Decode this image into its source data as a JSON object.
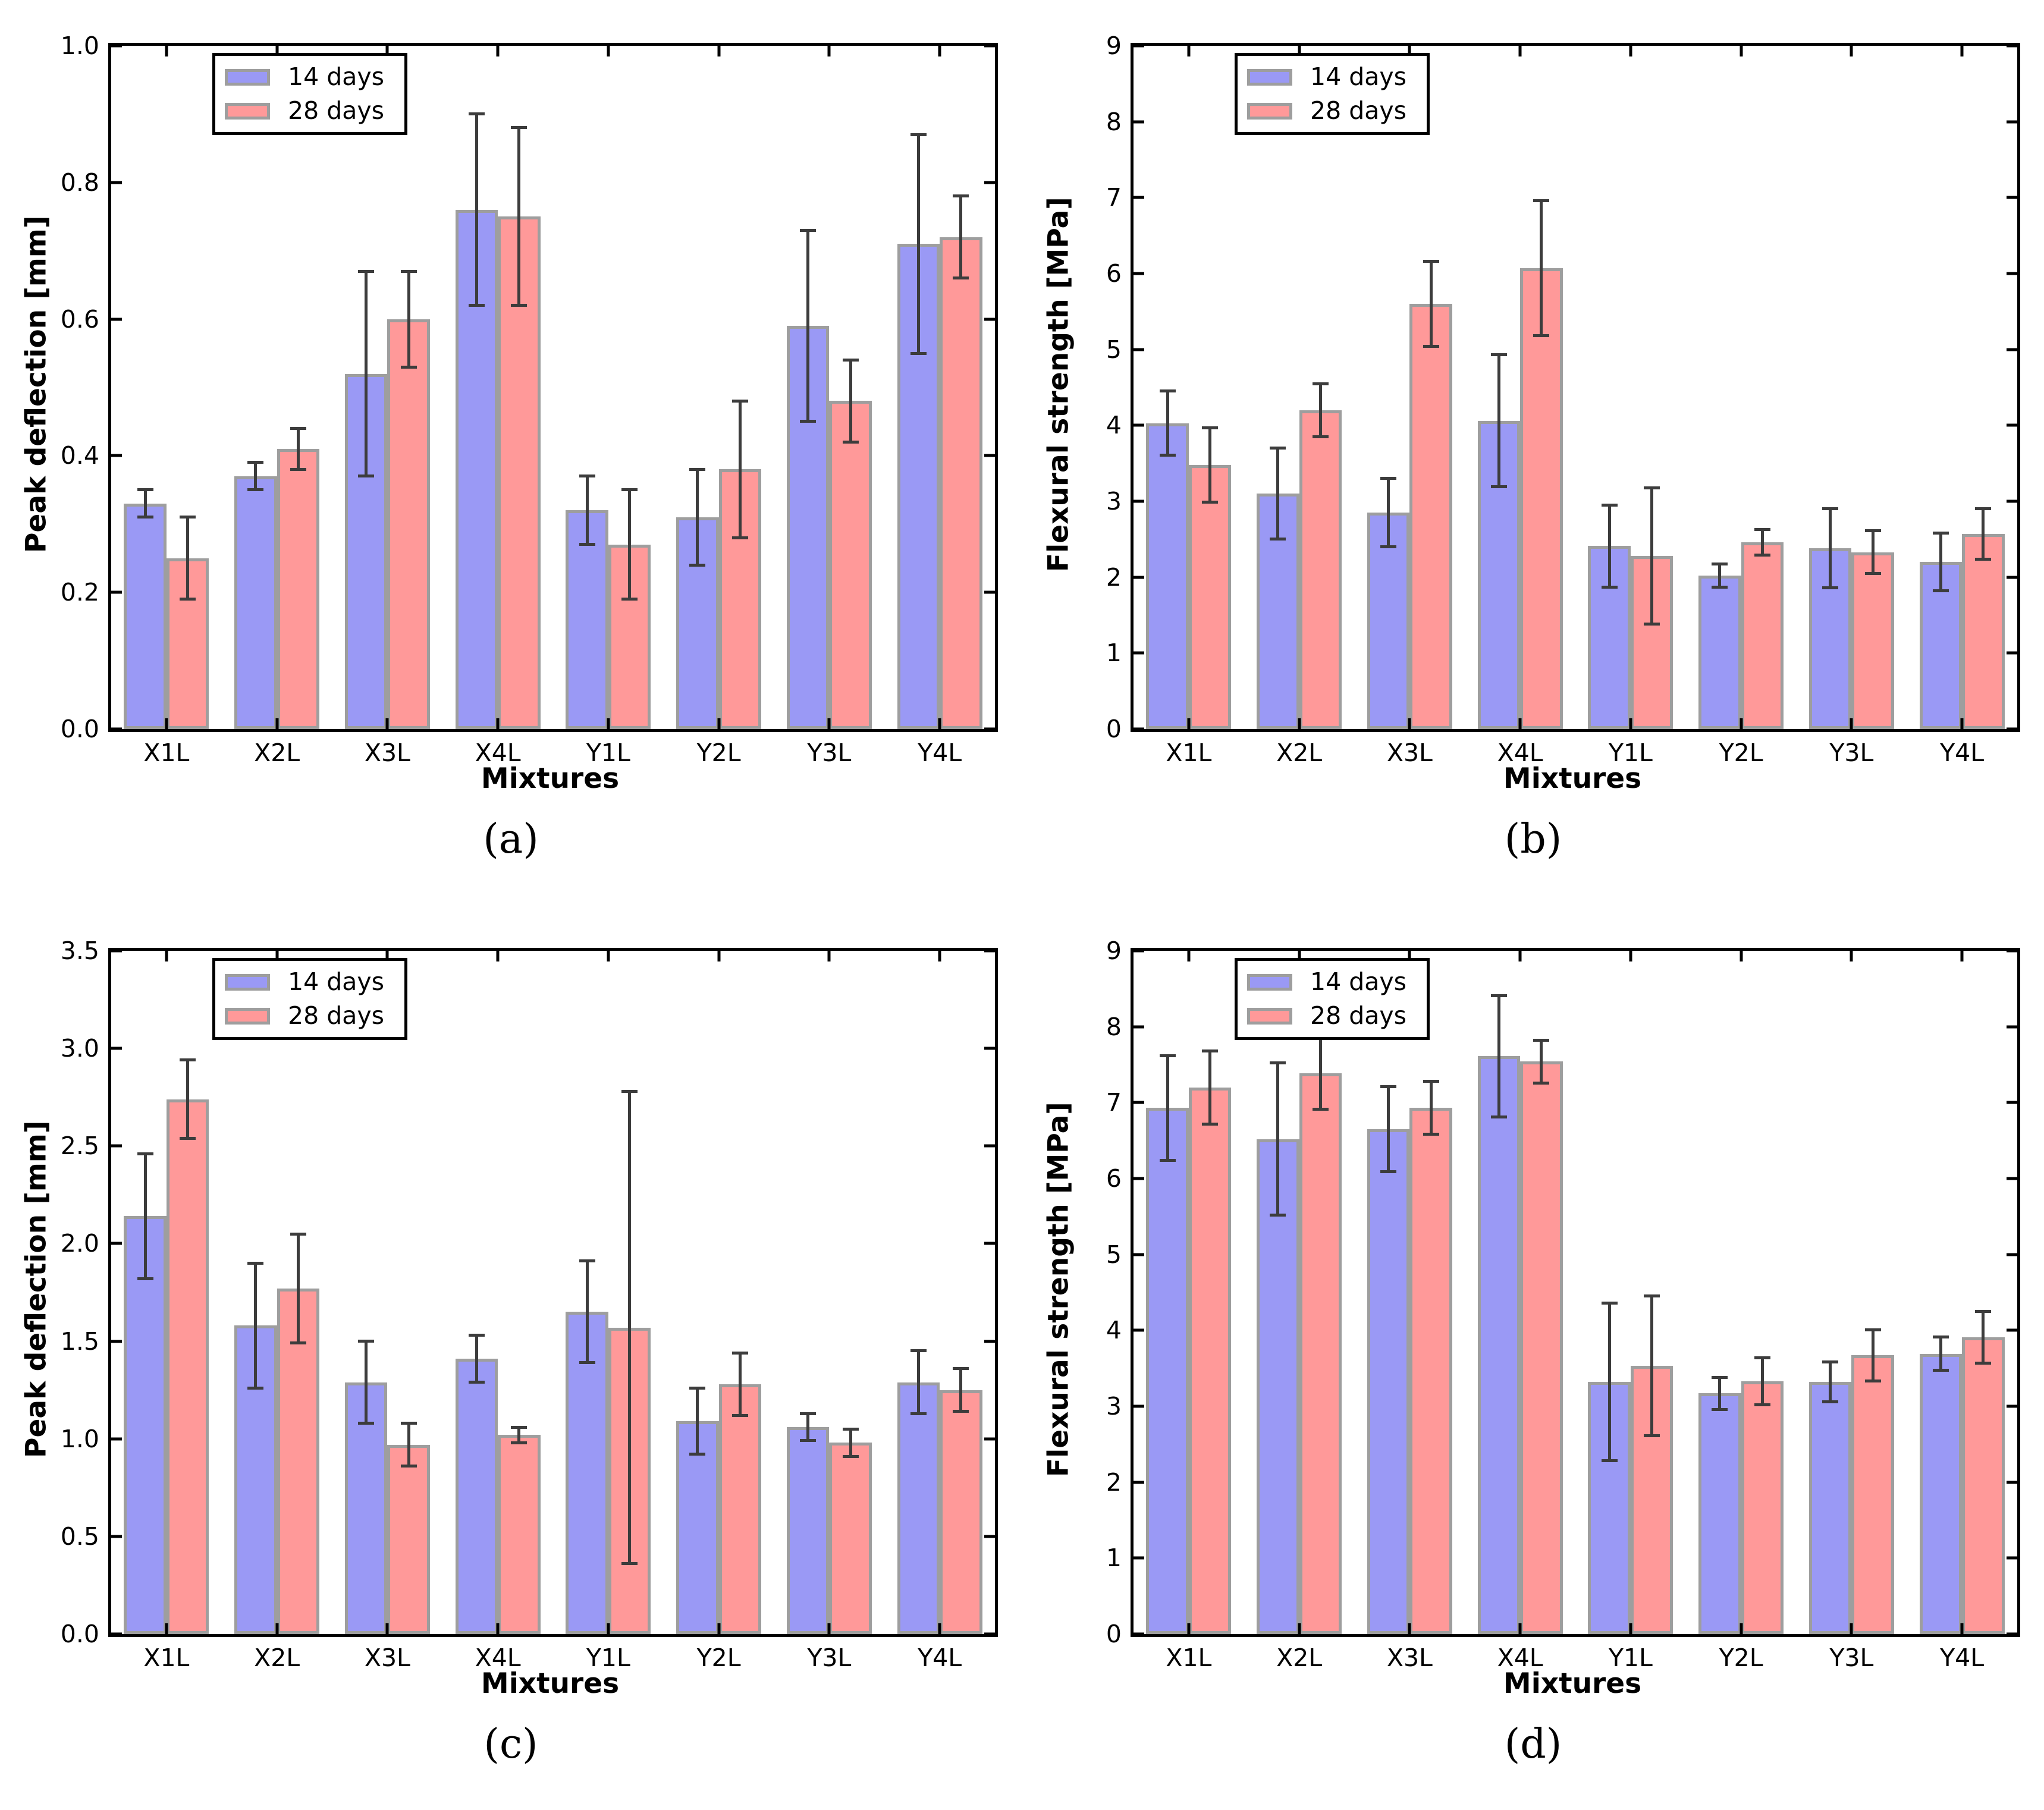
{
  "colors": {
    "series_14_days": "#9a99f5",
    "series_28_days": "#ff9999",
    "bar_edge": "#9e9e9e",
    "error_bar": "#3c3c3c",
    "axis": "#000000",
    "background": "#ffffff"
  },
  "chart_data": [
    {
      "id": "a",
      "type": "bar",
      "caption": "(a)",
      "xlabel": "Mixtures",
      "ylabel": "Peak deflection [mm]",
      "ylim": [
        0,
        1.0
      ],
      "yticks": [
        0,
        0.2,
        0.4,
        0.6,
        0.8,
        1.0
      ],
      "ytick_labels": [
        "0.0",
        "0.2",
        "0.4",
        "0.6",
        "0.8",
        "1.0"
      ],
      "categories": [
        "X1L",
        "X2L",
        "X3L",
        "X4L",
        "Y1L",
        "Y2L",
        "Y3L",
        "Y4L"
      ],
      "grid": false,
      "legend_position": "upper left",
      "legend": [
        "14 days",
        "28 days"
      ],
      "series": [
        {
          "name": "14 days",
          "color_key": "series_14_days",
          "values": [
            0.33,
            0.37,
            0.52,
            0.76,
            0.32,
            0.31,
            0.59,
            0.71
          ],
          "errors": [
            0.02,
            0.02,
            0.15,
            0.14,
            0.05,
            0.07,
            0.14,
            0.16
          ]
        },
        {
          "name": "28 days",
          "color_key": "series_28_days",
          "values": [
            0.25,
            0.41,
            0.6,
            0.75,
            0.27,
            0.38,
            0.48,
            0.72
          ],
          "errors": [
            0.06,
            0.03,
            0.07,
            0.13,
            0.08,
            0.1,
            0.06,
            0.06
          ]
        }
      ]
    },
    {
      "id": "b",
      "type": "bar",
      "caption": "(b)",
      "xlabel": "Mixtures",
      "ylabel": "Flexural strength [MPa]",
      "ylim": [
        0,
        9
      ],
      "yticks": [
        0,
        1,
        2,
        3,
        4,
        5,
        6,
        7,
        8,
        9
      ],
      "ytick_labels": [
        "0",
        "1",
        "2",
        "3",
        "4",
        "5",
        "6",
        "7",
        "8",
        "9"
      ],
      "categories": [
        "X1L",
        "X2L",
        "X3L",
        "X4L",
        "Y1L",
        "Y2L",
        "Y3L",
        "Y4L"
      ],
      "grid": false,
      "legend_position": "upper left",
      "legend": [
        "14 days",
        "28 days"
      ],
      "series": [
        {
          "name": "14 days",
          "color_key": "series_14_days",
          "values": [
            4.03,
            3.1,
            2.85,
            4.06,
            2.41,
            2.02,
            2.38,
            2.2
          ],
          "errors": [
            0.42,
            0.6,
            0.45,
            0.87,
            0.54,
            0.15,
            0.52,
            0.38
          ]
        },
        {
          "name": "28 days",
          "color_key": "series_28_days",
          "values": [
            3.48,
            4.2,
            5.6,
            6.07,
            2.28,
            2.46,
            2.33,
            2.57
          ],
          "errors": [
            0.49,
            0.35,
            0.56,
            0.89,
            0.9,
            0.17,
            0.28,
            0.33
          ]
        }
      ]
    },
    {
      "id": "c",
      "type": "bar",
      "caption": "(c)",
      "xlabel": "Mixtures",
      "ylabel": "Peak deflection [mm]",
      "ylim": [
        0,
        3.5
      ],
      "yticks": [
        0,
        0.5,
        1.0,
        1.5,
        2.0,
        2.5,
        3.0,
        3.5
      ],
      "ytick_labels": [
        "0.0",
        "0.5",
        "1.0",
        "1.5",
        "2.0",
        "2.5",
        "3.0",
        "3.5"
      ],
      "categories": [
        "X1L",
        "X2L",
        "X3L",
        "X4L",
        "Y1L",
        "Y2L",
        "Y3L",
        "Y4L"
      ],
      "grid": false,
      "legend_position": "upper left",
      "legend": [
        "14 days",
        "28 days"
      ],
      "series": [
        {
          "name": "14 days",
          "color_key": "series_14_days",
          "values": [
            2.14,
            1.58,
            1.29,
            1.41,
            1.65,
            1.09,
            1.06,
            1.29
          ],
          "errors": [
            0.32,
            0.32,
            0.21,
            0.12,
            0.26,
            0.17,
            0.07,
            0.16
          ]
        },
        {
          "name": "28 days",
          "color_key": "series_28_days",
          "values": [
            2.74,
            1.77,
            0.97,
            1.02,
            1.57,
            1.28,
            0.98,
            1.25
          ],
          "errors": [
            0.2,
            0.28,
            0.11,
            0.04,
            1.21,
            0.16,
            0.07,
            0.11
          ]
        }
      ]
    },
    {
      "id": "d",
      "type": "bar",
      "caption": "(d)",
      "xlabel": "Mixtures",
      "ylabel": "Flexural strength [MPa]",
      "ylim": [
        0,
        9
      ],
      "yticks": [
        0,
        1,
        2,
        3,
        4,
        5,
        6,
        7,
        8,
        9
      ],
      "ytick_labels": [
        "0",
        "1",
        "2",
        "3",
        "4",
        "5",
        "6",
        "7",
        "8",
        "9"
      ],
      "categories": [
        "X1L",
        "X2L",
        "X3L",
        "X4L",
        "Y1L",
        "Y2L",
        "Y3L",
        "Y4L"
      ],
      "grid": false,
      "legend_position": "upper left",
      "legend": [
        "14 days",
        "28 days"
      ],
      "series": [
        {
          "name": "14 days",
          "color_key": "series_14_days",
          "values": [
            6.93,
            6.52,
            6.65,
            7.61,
            3.32,
            3.17,
            3.32,
            3.69
          ],
          "errors": [
            0.69,
            1.0,
            0.56,
            0.8,
            1.04,
            0.21,
            0.26,
            0.22
          ]
        },
        {
          "name": "28 days",
          "color_key": "series_28_days",
          "values": [
            7.2,
            7.39,
            6.93,
            7.54,
            3.53,
            3.33,
            3.67,
            3.91
          ],
          "errors": [
            0.48,
            0.48,
            0.35,
            0.28,
            0.92,
            0.31,
            0.34,
            0.34
          ]
        }
      ]
    }
  ]
}
